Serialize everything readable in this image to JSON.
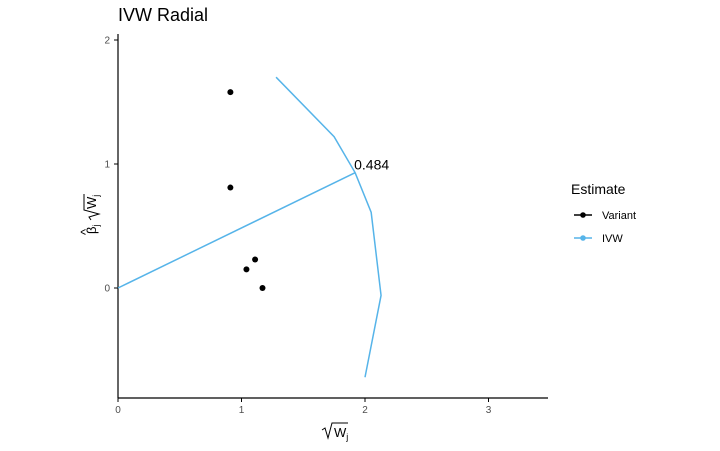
{
  "chart_data": {
    "type": "scatter",
    "title": "IVW Radial",
    "xlabel": "√Wj",
    "ylabel": "β̂j√Wj",
    "xlim": [
      0,
      3.5
    ],
    "ylim": [
      -0.9,
      2.05
    ],
    "x_ticks": [
      "0",
      "1",
      "2",
      "3"
    ],
    "y_ticks": [
      "0",
      "1",
      "2"
    ],
    "grid": false,
    "legend": {
      "title": "Estimate",
      "placement": "right",
      "entries": [
        {
          "label": "Variant",
          "color": "#000000"
        },
        {
          "label": "IVW",
          "color": "#56B4E9"
        }
      ]
    },
    "series": [
      {
        "name": "Variant",
        "color": "#000000",
        "points": [
          {
            "x": 0.91,
            "y": 1.58
          },
          {
            "x": 0.91,
            "y": 0.81
          },
          {
            "x": 1.11,
            "y": 0.23
          },
          {
            "x": 1.04,
            "y": 0.15
          },
          {
            "x": 1.17,
            "y": 0.0
          }
        ]
      },
      {
        "name": "IVW",
        "color": "#56B4E9",
        "fit_line": {
          "x": [
            0,
            1.92
          ],
          "y": [
            0,
            0.93
          ]
        },
        "scale_curve": {
          "x": [
            1.28,
            1.75,
            1.92,
            2.05,
            2.13,
            2.0
          ],
          "y": [
            1.7,
            1.22,
            0.93,
            0.61,
            -0.06,
            -0.72
          ]
        },
        "annotation": {
          "text": "0.484",
          "x": 1.92,
          "y": 0.93
        }
      }
    ]
  }
}
